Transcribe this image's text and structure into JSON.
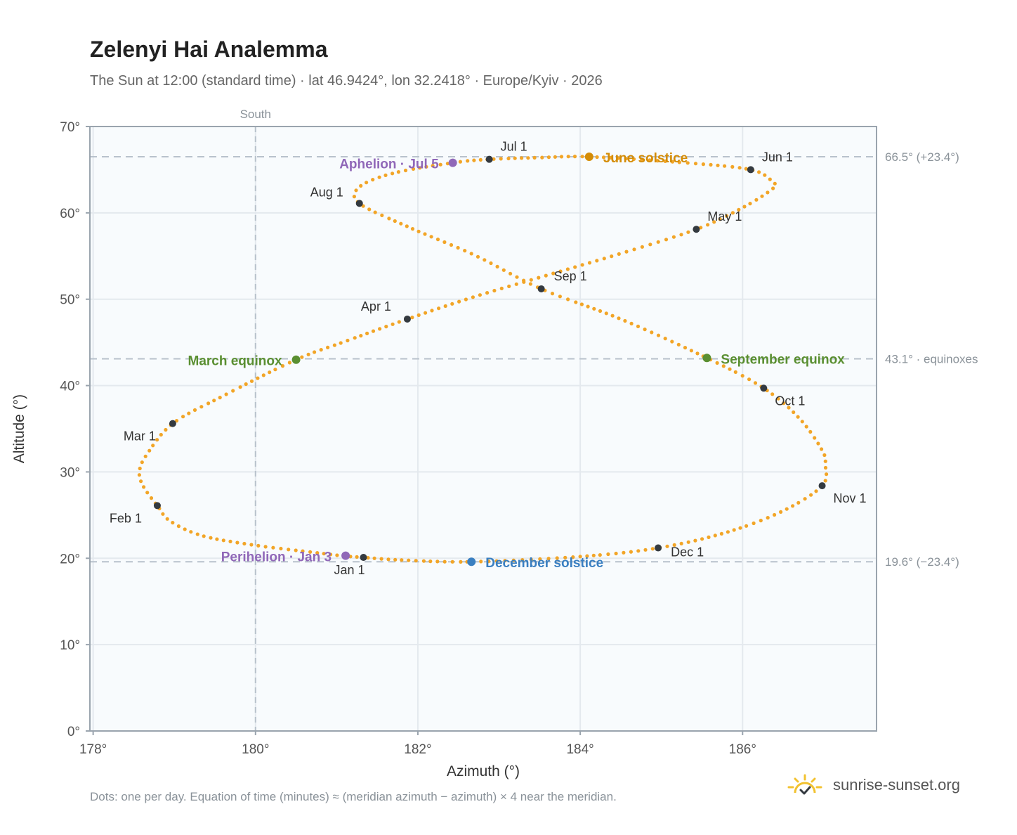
{
  "title": "Zelenyi Hai Analemma",
  "subtitle": "The Sun at 12:00 (standard time) · lat 46.9424°, lon 32.2418° · Europe/Kyiv · 2026",
  "footnote": "Dots: one per day. Equation of time (minutes) ≈ (meridian azimuth − azimuth) × 4 near the meridian.",
  "brand": {
    "name": "sunrise-sunset.org",
    "icon": "sun-logo-icon"
  },
  "chart_data": {
    "type": "scatter",
    "xlabel": "Azimuth (°)",
    "ylabel": "Altitude (°)",
    "xlim": [
      177.96,
      187.65
    ],
    "ylim": [
      0,
      70
    ],
    "x_ticks": [
      178,
      180,
      182,
      184,
      186
    ],
    "x_tick_labels": [
      "178°",
      "180°",
      "182°",
      "184°",
      "186°"
    ],
    "y_ticks": [
      0,
      10,
      20,
      30,
      40,
      50,
      60,
      70
    ],
    "y_tick_labels": [
      "0°",
      "10°",
      "20°",
      "30°",
      "40°",
      "50°",
      "60°",
      "70°"
    ],
    "grid": true,
    "meridian": {
      "x": 180,
      "label": "South"
    },
    "reference_lines": [
      {
        "y": 66.5,
        "label": "66.5° (+23.4°)"
      },
      {
        "y": 43.1,
        "label": "43.1° · equinoxes"
      },
      {
        "y": 19.6,
        "label": "19.6° (−23.4°)"
      }
    ],
    "colors": {
      "daily": "#f2a527",
      "month": "#343a40",
      "solstice_june": "#d48c06",
      "solstice_december": "#3a7fc1",
      "equinox": "#5a8f31",
      "apsis": "#9068b8",
      "plot_background": "#f8fbfd",
      "grid": "#e4e9ee",
      "reference": "#b8c2cc"
    },
    "monthly_points": [
      {
        "label": "Jan 1",
        "date": "2026-01-01",
        "azimuth": 181.33,
        "altitude": 20.1
      },
      {
        "label": "Feb 1",
        "date": "2026-02-01",
        "azimuth": 178.79,
        "altitude": 26.1
      },
      {
        "label": "Mar 1",
        "date": "2026-03-01",
        "azimuth": 178.98,
        "altitude": 35.6
      },
      {
        "label": "Apr 1",
        "date": "2026-04-01",
        "azimuth": 181.87,
        "altitude": 47.7
      },
      {
        "label": "May 1",
        "date": "2026-05-01",
        "azimuth": 185.43,
        "altitude": 58.1
      },
      {
        "label": "Jun 1",
        "date": "2026-06-01",
        "azimuth": 186.1,
        "altitude": 65.0
      },
      {
        "label": "Jul 1",
        "date": "2026-07-01",
        "azimuth": 182.88,
        "altitude": 66.2
      },
      {
        "label": "Aug 1",
        "date": "2026-08-01",
        "azimuth": 181.28,
        "altitude": 61.1
      },
      {
        "label": "Sep 1",
        "date": "2026-09-01",
        "azimuth": 183.52,
        "altitude": 51.2
      },
      {
        "label": "Oct 1",
        "date": "2026-10-01",
        "azimuth": 186.26,
        "altitude": 39.7
      },
      {
        "label": "Nov 1",
        "date": "2026-11-01",
        "azimuth": 186.98,
        "altitude": 28.4
      },
      {
        "label": "Dec 1",
        "date": "2026-12-01",
        "azimuth": 184.96,
        "altitude": 21.2
      }
    ],
    "events": [
      {
        "label": "June solstice",
        "azimuth": 184.11,
        "altitude": 66.5,
        "kind": "solstice_june"
      },
      {
        "label": "December solstice",
        "azimuth": 182.66,
        "altitude": 19.6,
        "kind": "solstice_december"
      },
      {
        "label": "March equinox",
        "azimuth": 180.5,
        "altitude": 43.0,
        "kind": "equinox"
      },
      {
        "label": "September equinox",
        "azimuth": 185.56,
        "altitude": 43.2,
        "kind": "equinox"
      },
      {
        "label": "Aphelion · Jul 5",
        "azimuth": 182.43,
        "altitude": 65.8,
        "kind": "apsis"
      },
      {
        "label": "Perihelion · Jan 3",
        "azimuth": 181.11,
        "altitude": 20.3,
        "kind": "apsis"
      }
    ],
    "daily_path": [
      [
        181.33,
        20.1
      ],
      [
        181.05,
        20.3
      ],
      [
        180.7,
        20.7
      ],
      [
        180.0,
        21.5
      ],
      [
        179.35,
        22.6
      ],
      [
        178.95,
        24.3
      ],
      [
        178.79,
        26.1
      ],
      [
        178.62,
        28.3
      ],
      [
        178.57,
        30.0
      ],
      [
        178.66,
        32.0
      ],
      [
        178.98,
        35.6
      ],
      [
        179.6,
        38.8
      ],
      [
        180.5,
        43.0
      ],
      [
        181.1,
        45.1
      ],
      [
        181.87,
        47.7
      ],
      [
        182.7,
        50.3
      ],
      [
        183.6,
        52.8
      ],
      [
        184.5,
        55.3
      ],
      [
        185.43,
        58.1
      ],
      [
        186.0,
        60.6
      ],
      [
        186.37,
        62.8
      ],
      [
        186.37,
        63.6
      ],
      [
        186.1,
        65.0
      ],
      [
        185.3,
        65.8
      ],
      [
        184.11,
        66.5
      ],
      [
        183.5,
        66.4
      ],
      [
        182.88,
        66.2
      ],
      [
        182.43,
        65.8
      ],
      [
        181.7,
        64.6
      ],
      [
        181.28,
        63.0
      ],
      [
        181.28,
        61.1
      ],
      [
        181.9,
        58.3
      ],
      [
        182.7,
        55.1
      ],
      [
        183.52,
        51.2
      ],
      [
        184.5,
        47.7
      ],
      [
        185.56,
        43.2
      ],
      [
        186.26,
        39.7
      ],
      [
        186.7,
        36.2
      ],
      [
        186.98,
        32.5
      ],
      [
        187.02,
        30.8
      ],
      [
        186.98,
        28.4
      ],
      [
        186.5,
        25.5
      ],
      [
        185.8,
        23.0
      ],
      [
        184.96,
        21.2
      ],
      [
        184.0,
        20.2
      ],
      [
        182.66,
        19.6
      ],
      [
        181.8,
        19.8
      ],
      [
        181.33,
        20.1
      ]
    ]
  }
}
